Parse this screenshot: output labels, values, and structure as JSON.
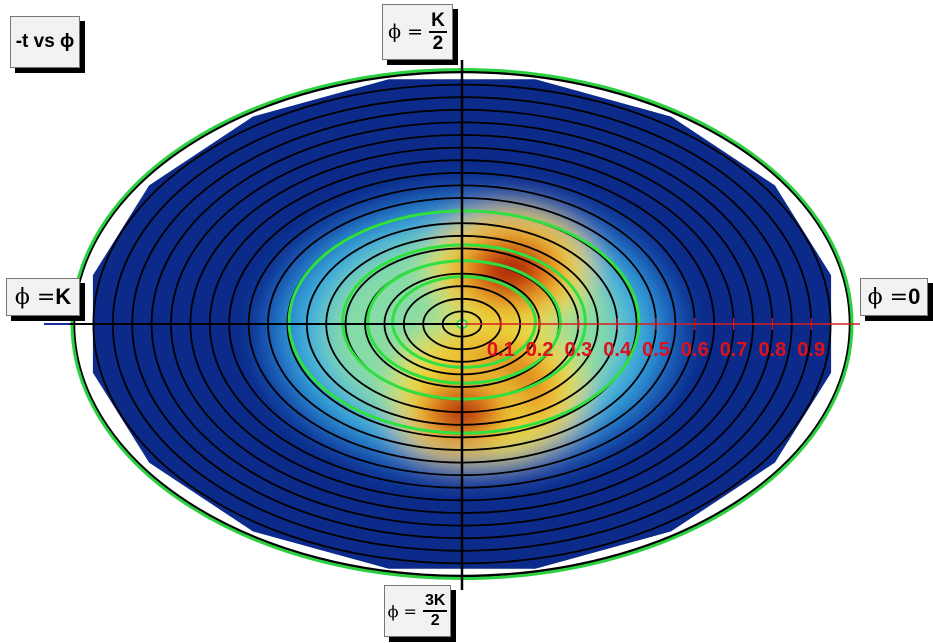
{
  "title": "-t vs ϕ",
  "angle_labels": {
    "right": {
      "prefix": "ϕ = ",
      "text": "0"
    },
    "top": {
      "prefix": "ϕ = ",
      "numerator": "K",
      "denominator": "2"
    },
    "left": {
      "prefix": "ϕ = ",
      "text": "K"
    },
    "bottom": {
      "prefix": "ϕ = ",
      "numerator": "3K",
      "denominator": "2"
    }
  },
  "colors": {
    "radial_axis_labels": "#e0101a",
    "radial_axis_line": "#d42020",
    "rings": "#000000",
    "contours": "#30e040",
    "outer_ring": "#2ad040",
    "background": "#0c2a8a"
  },
  "chart_data": {
    "type": "heatmap",
    "projection": "polar",
    "title": "-t vs ϕ",
    "radial_axis": {
      "range": [
        0,
        1
      ],
      "tick_labels": [
        "0.1",
        "0.2",
        "0.3",
        "0.4",
        "0.5",
        "0.6",
        "0.7",
        "0.8",
        "0.9"
      ],
      "ticks": [
        0.1,
        0.2,
        0.3,
        0.4,
        0.5,
        0.6,
        0.7,
        0.8,
        0.9
      ]
    },
    "angular_axis": {
      "unit": "ϕ",
      "labels": [
        "ϕ = 0",
        "ϕ = K/2",
        "ϕ = K",
        "ϕ = 3K/2"
      ]
    },
    "ring_radii": [
      0.05,
      0.1,
      0.15,
      0.2,
      0.25,
      0.3,
      0.35,
      0.4,
      0.45,
      0.5,
      0.55,
      0.6,
      0.65,
      0.7,
      0.75,
      0.8,
      0.85,
      0.9,
      0.95,
      1.0
    ],
    "contour_radii": [
      0.2,
      0.27,
      0.34,
      0.49
    ],
    "colorscale": [
      "#0c2a8a",
      "#1f6fc8",
      "#3fb7e0",
      "#8fe0a0",
      "#e8e040",
      "#f0a020",
      "#d03010",
      "#9a1010"
    ],
    "hotspots": [
      {
        "phi_deg": 285,
        "r": 0.27,
        "intensity": 1.0
      },
      {
        "phi_deg": 60,
        "r": 0.25,
        "intensity": 0.85
      },
      {
        "phi_deg": 270,
        "r": 0.35,
        "intensity": 0.7
      }
    ],
    "grid": true,
    "legend": "none"
  }
}
